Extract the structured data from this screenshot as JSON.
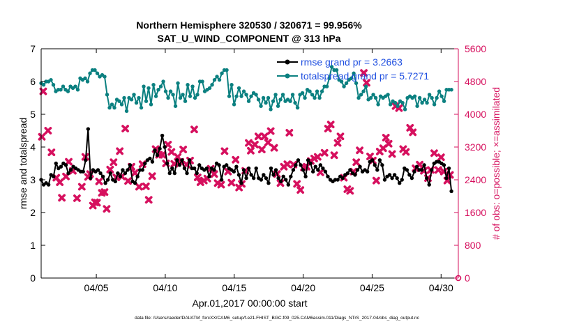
{
  "chart_data": {
    "type": "line",
    "title_line1": "Northern Hemisphere 320530 / 320671 = 99.956%",
    "title_line2": "SAT_U_WIND_COMPONENT @ 313 hPa",
    "xlabel": "Apr.01,2017 00:00:00 start",
    "ylabel_left": "rmse and totalspread",
    "ylabel_right": "# of obs: o=possible; ×=assimilated",
    "footer": "data file: /Users/raeder/DAI/ATM_forcXX/CAM6_setup/f.e21.FHIST_BGC.f09_025.CAM6assim.011/Diags_NTrS_2017-04/obs_diag_output.nc",
    "xlim": [
      1,
      31.25
    ],
    "ylim_left": [
      0,
      7
    ],
    "ylim_right": [
      0,
      5600
    ],
    "xticks": [
      5,
      10,
      15,
      20,
      25,
      30
    ],
    "xtick_labels": [
      "04/05",
      "04/10",
      "04/15",
      "04/20",
      "04/25",
      "04/30"
    ],
    "yticks_left": [
      0,
      1,
      2,
      3,
      4,
      5,
      6,
      7
    ],
    "yticks_right": [
      0,
      800,
      1600,
      2400,
      3200,
      4000,
      4800,
      5600
    ],
    "colors": {
      "rmse": "#000000",
      "spread": "#0b8080",
      "obs": "#d6105e",
      "legend_text": "#1f4fe0",
      "right_axis": "#d6105e"
    },
    "legend": [
      {
        "label": "rmse grand pr = 3.2663",
        "series": "rmse"
      },
      {
        "label": "totalspread grand pr = 5.7271",
        "series": "spread"
      }
    ],
    "series": [
      {
        "name": "rmse",
        "values": [
          3.0,
          2.85,
          2.9,
          2.85,
          3.15,
          3.1,
          3.5,
          3.35,
          3.4,
          3.5,
          3.45,
          3.2,
          3.3,
          3.4,
          3.35,
          3.3,
          3.25,
          3.25,
          3.6,
          4.55,
          3.05,
          3.3,
          3.25,
          3.3,
          3.2,
          3.1,
          2.9,
          3.0,
          3.2,
          3.0,
          2.95,
          3.2,
          3.1,
          3.3,
          3.2,
          3.3,
          3.45,
          2.95,
          2.9,
          3.1,
          3.3,
          3.3,
          3.5,
          3.6,
          3.65,
          3.55,
          3.9,
          3.75,
          3.95,
          4.35,
          4.0,
          3.5,
          3.2,
          3.35,
          3.2,
          3.6,
          3.45,
          3.6,
          3.35,
          3.2,
          3.6,
          3.35,
          3.35,
          3.2,
          3.45,
          3.35,
          3.3,
          3.35,
          3.1,
          3.35,
          3.3,
          3.5,
          3.45,
          3.0,
          3.4,
          3.45,
          3.35,
          3.3,
          3.25,
          3.4,
          3.15,
          2.9,
          3.3,
          3.05,
          3.35,
          3.15,
          3.05,
          3.35,
          3.05,
          3.0,
          3.15,
          3.05,
          2.9,
          3.35,
          3.15,
          3.3,
          3.05,
          2.95,
          3.1,
          3.0,
          2.85,
          3.1,
          3.3,
          3.45,
          3.6,
          3.45,
          3.3,
          3.1,
          3.6,
          3.5,
          3.25,
          3.4,
          3.3,
          3.45,
          3.35,
          3.25,
          3.1,
          3.0,
          2.95,
          3.0,
          3.0,
          3.1,
          3.05,
          3.15,
          3.2,
          3.3,
          3.2,
          3.15,
          3.3,
          3.4,
          3.25,
          3.3,
          3.25,
          3.55,
          3.6,
          3.45,
          3.3,
          3.6,
          3.45,
          3.0,
          3.1,
          3.15,
          3.05,
          3.15,
          3.05,
          2.9,
          3.0,
          3.35,
          3.3,
          3.15,
          3.05,
          3.25,
          3.4,
          3.3,
          3.3,
          3.45,
          3.05,
          2.85,
          3.3,
          3.5,
          3.55,
          3.55,
          3.5,
          3.45,
          3.05,
          3.35,
          2.65
        ]
      },
      {
        "name": "spread",
        "values": [
          5.95,
          5.9,
          6.0,
          6.0,
          6.05,
          5.9,
          5.7,
          5.75,
          5.75,
          5.85,
          5.75,
          5.7,
          5.85,
          5.8,
          5.85,
          5.75,
          6.1,
          6.05,
          6.1,
          6.0,
          6.25,
          6.35,
          6.35,
          6.25,
          6.15,
          6.2,
          6.15,
          5.6,
          5.2,
          5.3,
          5.2,
          5.45,
          5.4,
          5.3,
          5.5,
          5.1,
          5.5,
          5.45,
          5.6,
          5.35,
          5.5,
          5.2,
          5.85,
          5.4,
          5.8,
          5.3,
          5.9,
          5.55,
          5.75,
          5.85,
          6.0,
          5.7,
          5.5,
          5.7,
          5.6,
          5.25,
          5.95,
          5.5,
          5.6,
          5.4,
          5.9,
          5.55,
          5.85,
          5.5,
          5.6,
          6.0,
          6.0,
          5.7,
          5.75,
          5.8,
          5.9,
          6.05,
          6.15,
          6.05,
          6.25,
          6.35,
          6.35,
          5.55,
          5.9,
          5.3,
          5.55,
          5.8,
          5.55,
          5.7,
          5.6,
          5.4,
          5.55,
          5.65,
          5.6,
          5.45,
          5.25,
          5.5,
          5.35,
          5.5,
          5.15,
          5.4,
          5.6,
          5.25,
          5.45,
          5.6,
          5.4,
          5.45,
          5.4,
          5.6,
          5.35,
          5.2,
          5.6,
          5.65,
          5.5,
          5.75,
          5.7,
          5.6,
          5.5,
          5.7,
          5.5,
          5.7,
          5.85,
          5.85,
          6.1,
          6.45,
          6.35,
          6.35,
          6.05,
          6.0,
          5.85,
          5.95,
          6.05,
          6.1,
          6.25,
          5.95,
          5.5,
          5.6,
          5.7,
          5.85,
          5.45,
          5.5,
          5.6,
          5.5,
          5.3,
          5.55,
          5.5,
          5.55,
          5.6,
          5.3,
          5.4,
          5.35,
          5.25,
          5.4,
          5.35,
          5.15,
          5.5,
          5.55,
          5.5,
          5.55,
          5.25,
          5.5,
          5.35,
          5.45,
          5.35,
          5.6,
          5.5,
          5.3,
          5.5,
          5.7,
          5.55,
          5.4,
          5.75,
          5.75,
          5.75
        ]
      },
      {
        "name": "obs",
        "points": [
          [
            1.05,
            3450
          ],
          [
            1.15,
            4560
          ],
          [
            1.5,
            3600
          ],
          [
            1.75,
            3070
          ],
          [
            2.1,
            2450
          ],
          [
            2.35,
            2340
          ],
          [
            2.5,
            1960
          ],
          [
            2.8,
            2480
          ],
          [
            3.0,
            2840
          ],
          [
            3.3,
            2620
          ],
          [
            3.6,
            1950
          ],
          [
            3.95,
            2230
          ],
          [
            4.2,
            2960
          ],
          [
            4.4,
            2470
          ],
          [
            4.55,
            2540
          ],
          [
            4.75,
            1770
          ],
          [
            4.9,
            1850
          ],
          [
            5.05,
            1840
          ],
          [
            5.2,
            2360
          ],
          [
            5.4,
            2080
          ],
          [
            5.6,
            2100
          ],
          [
            5.75,
            1690
          ],
          [
            6.0,
            2650
          ],
          [
            6.25,
            2830
          ],
          [
            6.45,
            2460
          ],
          [
            6.7,
            3100
          ],
          [
            6.85,
            2480
          ],
          [
            7.1,
            3650
          ],
          [
            7.3,
            2370
          ],
          [
            7.55,
            2720
          ],
          [
            7.8,
            2570
          ],
          [
            8.1,
            2230
          ],
          [
            8.35,
            2780
          ],
          [
            8.6,
            2240
          ],
          [
            8.8,
            1910
          ],
          [
            9.05,
            2490
          ],
          [
            9.3,
            3150
          ],
          [
            9.55,
            3010
          ],
          [
            9.8,
            3010
          ],
          [
            10.05,
            2800
          ],
          [
            10.2,
            3260
          ],
          [
            10.45,
            3080
          ],
          [
            10.65,
            2790
          ],
          [
            10.9,
            2960
          ],
          [
            11.1,
            2840
          ],
          [
            11.3,
            3140
          ],
          [
            11.55,
            2770
          ],
          [
            11.8,
            2870
          ],
          [
            12.1,
            3630
          ],
          [
            12.35,
            2460
          ],
          [
            12.55,
            2340
          ],
          [
            12.8,
            2380
          ],
          [
            13.05,
            2430
          ],
          [
            13.3,
            2670
          ],
          [
            13.55,
            2540
          ],
          [
            13.8,
            2320
          ],
          [
            14.05,
            2280
          ],
          [
            14.3,
            3100
          ],
          [
            14.55,
            2600
          ],
          [
            14.8,
            2330
          ],
          [
            15.1,
            2890
          ],
          [
            15.35,
            2210
          ],
          [
            15.55,
            2300
          ],
          [
            15.8,
            2620
          ],
          [
            16.05,
            3300
          ],
          [
            16.2,
            3110
          ],
          [
            16.5,
            3260
          ],
          [
            16.75,
            3460
          ],
          [
            17.0,
            3140
          ],
          [
            17.2,
            3460
          ],
          [
            17.45,
            3310
          ],
          [
            17.65,
            3590
          ],
          [
            17.9,
            3180
          ],
          [
            18.1,
            2540
          ],
          [
            18.35,
            2320
          ],
          [
            18.6,
            2720
          ],
          [
            18.85,
            2780
          ],
          [
            19.0,
            3550
          ],
          [
            19.3,
            2770
          ],
          [
            19.55,
            2300
          ],
          [
            19.8,
            2150
          ],
          [
            20.05,
            2700
          ],
          [
            20.25,
            2720
          ],
          [
            20.55,
            2860
          ],
          [
            20.8,
            2920
          ],
          [
            21.05,
            2960
          ],
          [
            21.25,
            2580
          ],
          [
            21.55,
            3060
          ],
          [
            21.8,
            3650
          ],
          [
            22.0,
            3750
          ],
          [
            22.25,
            3000
          ],
          [
            22.5,
            3300
          ],
          [
            22.7,
            3460
          ],
          [
            22.95,
            2450
          ],
          [
            23.2,
            2170
          ],
          [
            23.4,
            2130
          ],
          [
            23.65,
            2600
          ],
          [
            23.85,
            2830
          ],
          [
            24.1,
            3120
          ],
          [
            24.4,
            5010
          ],
          [
            24.6,
            4770
          ],
          [
            24.85,
            2970
          ],
          [
            25.05,
            2870
          ],
          [
            25.3,
            2380
          ],
          [
            25.55,
            3090
          ],
          [
            25.8,
            3170
          ],
          [
            26.0,
            3430
          ],
          [
            26.2,
            3280
          ],
          [
            26.45,
            3030
          ],
          [
            26.7,
            4200
          ],
          [
            26.95,
            4150
          ],
          [
            27.25,
            3150
          ],
          [
            27.45,
            3080
          ],
          [
            27.75,
            3670
          ],
          [
            27.95,
            3560
          ],
          [
            28.15,
            2680
          ],
          [
            28.45,
            2770
          ],
          [
            28.75,
            2620
          ],
          [
            29.05,
            2440
          ],
          [
            29.25,
            2640
          ],
          [
            29.5,
            3050
          ],
          [
            29.8,
            2640
          ],
          [
            30.0,
            2950
          ],
          [
            30.2,
            2600
          ],
          [
            30.45,
            2380
          ],
          [
            30.65,
            2520
          ]
        ]
      }
    ]
  }
}
